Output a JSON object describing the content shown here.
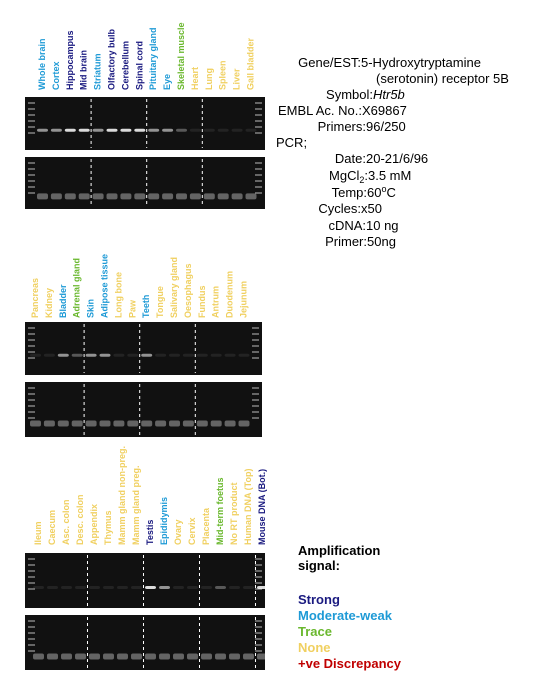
{
  "panels": [
    {
      "lanes": [
        {
          "label": "Whole brain",
          "color": "#1e9ad6"
        },
        {
          "label": "Cortex",
          "color": "#1e9ad6"
        },
        {
          "label": "Hippocampus",
          "color": "#1a1a80"
        },
        {
          "label": "Mid brain",
          "color": "#1a1a80"
        },
        {
          "label": "Striatum",
          "color": "#1e9ad6"
        },
        {
          "label": "Olfactory bulb",
          "color": "#1a1a80"
        },
        {
          "label": "Cerebellum",
          "color": "#1a1a80"
        },
        {
          "label": "Spinal cord",
          "color": "#1a1a80"
        },
        {
          "label": "Pituitary gland",
          "color": "#1e9ad6"
        },
        {
          "label": "Eye",
          "color": "#1e9ad6"
        },
        {
          "label": "Skeletal muscle",
          "color": "#6ab82e"
        },
        {
          "label": "Heart",
          "color": "#f0d060"
        },
        {
          "label": "Lung",
          "color": "#f0d060"
        },
        {
          "label": "Spleen",
          "color": "#f0d060"
        },
        {
          "label": "Liver",
          "color": "#f0d060"
        },
        {
          "label": "Gall bladder",
          "color": "#f0d060"
        }
      ]
    },
    {
      "lanes": [
        {
          "label": "Pancreas",
          "color": "#f0d060"
        },
        {
          "label": "Kidney",
          "color": "#f0d060"
        },
        {
          "label": "Bladder",
          "color": "#1e9ad6"
        },
        {
          "label": "Adrenal gland",
          "color": "#6ab82e"
        },
        {
          "label": "Skin",
          "color": "#1e9ad6"
        },
        {
          "label": "Adipose tissue",
          "color": "#1e9ad6"
        },
        {
          "label": "Long bone",
          "color": "#f0d060"
        },
        {
          "label": "Paw",
          "color": "#f0d060"
        },
        {
          "label": "Teeth",
          "color": "#1e9ad6"
        },
        {
          "label": "Tongue",
          "color": "#f0d060"
        },
        {
          "label": "Salivary gland",
          "color": "#f0d060"
        },
        {
          "label": "Oesophagus",
          "color": "#f0d060"
        },
        {
          "label": "Fundus",
          "color": "#f0d060"
        },
        {
          "label": "Antrum",
          "color": "#f0d060"
        },
        {
          "label": "Duodenum",
          "color": "#f0d060"
        },
        {
          "label": "Jejunum",
          "color": "#f0d060"
        }
      ]
    },
    {
      "lanes": [
        {
          "label": "Ileum",
          "color": "#f0d060"
        },
        {
          "label": "Caecum",
          "color": "#f0d060"
        },
        {
          "label": "Asc. colon",
          "color": "#f0d060"
        },
        {
          "label": "Desc. colon",
          "color": "#f0d060"
        },
        {
          "label": "Appendix",
          "color": "#f0d060"
        },
        {
          "label": "Thymus",
          "color": "#f0d060"
        },
        {
          "label": "Mamm gland non-preg.",
          "color": "#f0d060"
        },
        {
          "label": "Mamm gland preg.",
          "color": "#f0d060"
        },
        {
          "label": "Testis",
          "color": "#1a1a80"
        },
        {
          "label": "Epididymis",
          "color": "#1e9ad6"
        },
        {
          "label": "Ovary",
          "color": "#f0d060"
        },
        {
          "label": "Cervix",
          "color": "#f0d060"
        },
        {
          "label": "Placenta",
          "color": "#f0d060"
        },
        {
          "label": "Mid-term foetus",
          "color": "#6ab82e"
        },
        {
          "label": "No RT product",
          "color": "#f0d060"
        },
        {
          "label": "Human DNA (Top)",
          "color": "#f0d060"
        },
        {
          "label": "Mouse DNA (Bot.)",
          "color": "#1a1a80"
        }
      ]
    }
  ],
  "info": {
    "gene": {
      "label": "Gene/EST:",
      "value": "5-Hydroxytryptamine",
      "value_cont": "(serotonin) receptor 5B"
    },
    "symbol": {
      "label": "Symbol:",
      "value": "Htr5b"
    },
    "embl": {
      "label": "EMBL Ac. No.:",
      "value": "X69867"
    },
    "primers": {
      "label": "Primers:",
      "value": "96/250"
    },
    "pcr": "PCR;",
    "date": {
      "label": "Date:",
      "value": "20-21/6/96"
    },
    "mgcl": {
      "label": "MgCl",
      "sub": "2",
      "label_end": ":",
      "value": "3.5 mM"
    },
    "temp": {
      "label": "Temp:",
      "value": "60",
      "sup": "o",
      "value_end": "C"
    },
    "cycles": {
      "label": "Cycles:",
      "value": "x50"
    },
    "cdna": {
      "label": "cDNA:",
      "value": "10 ng"
    },
    "primer": {
      "label": "Primer:",
      "value": "50ng"
    }
  },
  "legend": {
    "title": [
      "Amplification",
      "signal:"
    ],
    "items": [
      {
        "label": "Strong",
        "color": "#1a1a80"
      },
      {
        "label": "Moderate-weak",
        "color": "#1e9ad6"
      },
      {
        "label": "Trace",
        "color": "#6ab82e"
      },
      {
        "label": "None",
        "color": "#f0d060"
      },
      {
        "label": "+ve Discrepancy",
        "color": "#c00000"
      }
    ]
  }
}
